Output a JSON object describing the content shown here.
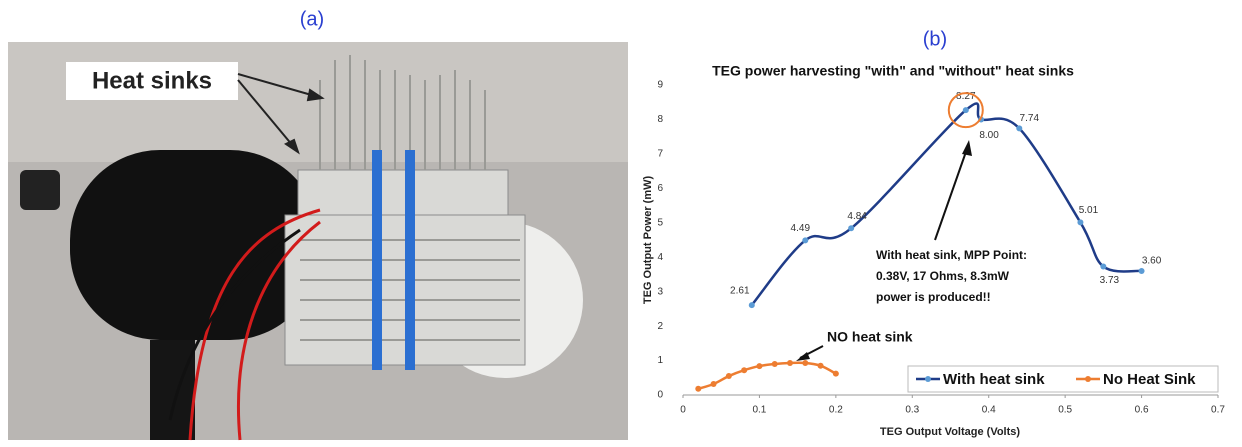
{
  "panels": {
    "a": {
      "label": "(a)",
      "callout": "Heat sinks"
    },
    "b": {
      "label": "(b)"
    }
  },
  "chart_data": {
    "type": "line",
    "title": "TEG power harvesting \"with\" and \"without\" heat sinks",
    "x_label": "TEG Output Voltage (Volts)",
    "y_label": "TEG Output Power (mW)",
    "xlim": [
      0,
      0.7
    ],
    "xticks": [
      0,
      0.1,
      0.2,
      0.3,
      0.4,
      0.5,
      0.6,
      0.7
    ],
    "ylim": [
      0,
      9
    ],
    "yticks": [
      0,
      1,
      2,
      3,
      4,
      5,
      6,
      7,
      8,
      9
    ],
    "grid": false,
    "legend": "lower right",
    "series": [
      {
        "name": "With heat sink",
        "color": "#1f3c88",
        "marker_color": "#5b9bd5",
        "x": [
          0.09,
          0.16,
          0.22,
          0.37,
          0.39,
          0.44,
          0.52,
          0.55,
          0.6
        ],
        "values": [
          2.61,
          4.49,
          4.84,
          8.27,
          8,
          7.74,
          5.01,
          3.73,
          3.6
        ],
        "value_labels": [
          "2.61",
          "4.49",
          "4.84",
          "8.27",
          "8.00",
          "7.74",
          "5.01",
          "3.73",
          "3.60"
        ]
      },
      {
        "name": "No Heat Sink",
        "color": "#ed7d31",
        "marker_color": "#ed7d31",
        "x": [
          0.02,
          0.04,
          0.06,
          0.08,
          0.1,
          0.12,
          0.14,
          0.16,
          0.18,
          0.2
        ],
        "values": [
          0.18,
          0.32,
          0.55,
          0.72,
          0.84,
          0.9,
          0.93,
          0.93,
          0.85,
          0.62
        ]
      }
    ],
    "annotations": [
      {
        "text": "NO heat sink"
      },
      {
        "lines": [
          "With heat sink, MPP Point:",
          "0.38V, 17 Ohms, 8.3mW",
          "power is produced!!"
        ]
      }
    ]
  }
}
